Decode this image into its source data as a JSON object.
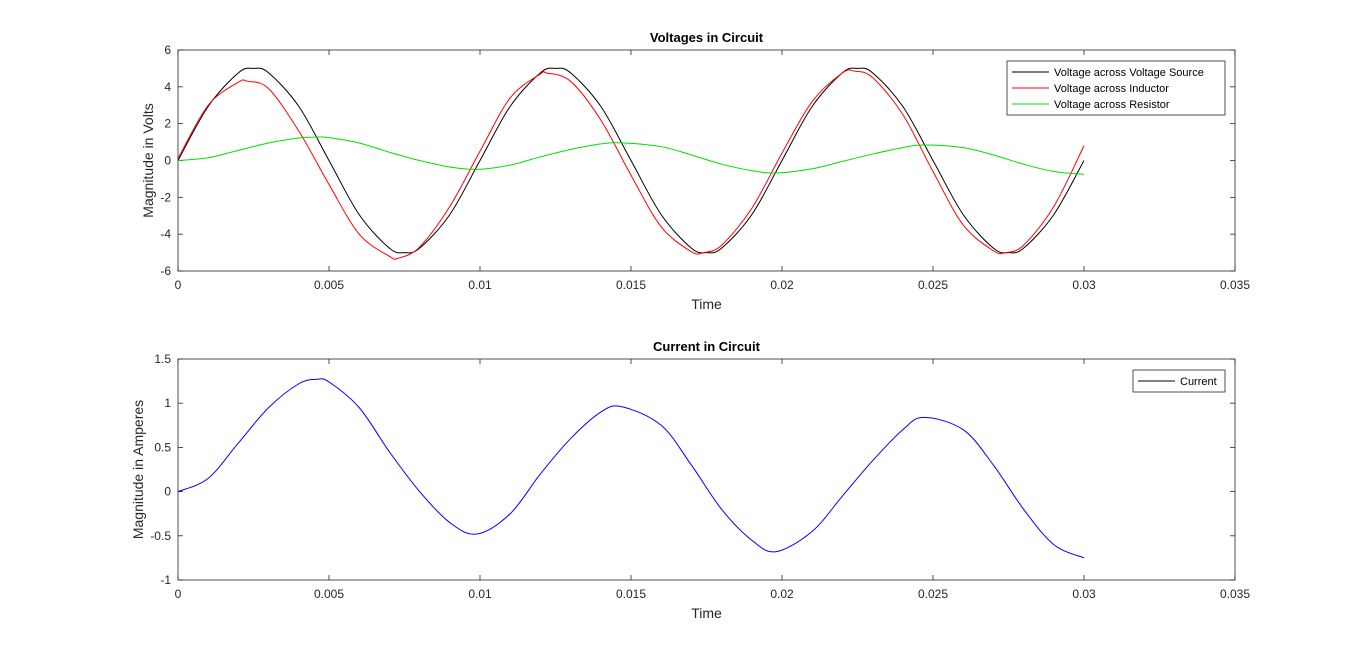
{
  "colors": {
    "source": "#000000",
    "inductor": "#ff0000",
    "resistor": "#00e000",
    "current": "#0000ff",
    "axis": "#262626",
    "legend_border": "#262626"
  },
  "chart_data": [
    {
      "type": "line",
      "title": "Voltages in Circuit",
      "xlabel": "Time",
      "ylabel": "Magnitude in Volts",
      "xlim": [
        0,
        0.035
      ],
      "ylim": [
        -6,
        6
      ],
      "xticks": [
        0,
        0.005,
        0.01,
        0.015,
        0.02,
        0.025,
        0.03,
        0.035
      ],
      "xtick_labels": [
        "0",
        "0.005",
        "0.01",
        "0.015",
        "0.02",
        "0.025",
        "0.03",
        "0.035"
      ],
      "yticks": [
        -6,
        -4,
        -2,
        0,
        2,
        4,
        6
      ],
      "ytick_labels": [
        "-6",
        "-4",
        "-2",
        "0",
        "2",
        "4",
        "6"
      ],
      "grid": false,
      "legend_position": "top-right",
      "series": [
        {
          "name": "Voltage across Voltage Source",
          "color_key": "source",
          "x": [
            0,
            0.001,
            0.002,
            0.0025,
            0.003,
            0.004,
            0.005,
            0.006,
            0.007,
            0.0075,
            0.008,
            0.009,
            0.01,
            0.011,
            0.012,
            0.0125,
            0.013,
            0.014,
            0.015,
            0.016,
            0.017,
            0.0175,
            0.018,
            0.019,
            0.02,
            0.021,
            0.022,
            0.0225,
            0.023,
            0.024,
            0.025,
            0.026,
            0.027,
            0.0275,
            0.028,
            0.029,
            0.03
          ],
          "values": [
            0,
            2.94,
            4.76,
            5.0,
            4.76,
            2.94,
            0,
            -2.94,
            -4.76,
            -5.0,
            -4.76,
            -2.94,
            0,
            2.94,
            4.76,
            5.0,
            4.76,
            2.94,
            0,
            -2.94,
            -4.76,
            -5.0,
            -4.76,
            -2.94,
            0,
            2.94,
            4.76,
            5.0,
            4.76,
            2.94,
            0,
            -2.94,
            -4.76,
            -5.0,
            -4.76,
            -2.94,
            0
          ]
        },
        {
          "name": "Voltage across Inductor",
          "color_key": "inductor",
          "x": [
            0,
            0.001,
            0.002,
            0.0023,
            0.003,
            0.004,
            0.005,
            0.006,
            0.007,
            0.0073,
            0.008,
            0.009,
            0.01,
            0.011,
            0.012,
            0.0122,
            0.013,
            0.014,
            0.015,
            0.016,
            0.017,
            0.0174,
            0.018,
            0.019,
            0.02,
            0.021,
            0.022,
            0.0224,
            0.023,
            0.024,
            0.025,
            0.026,
            0.027,
            0.0274,
            0.028,
            0.029,
            0.03
          ],
          "values": [
            0.1,
            3.0,
            4.25,
            4.3,
            3.9,
            1.6,
            -1.3,
            -4.0,
            -5.2,
            -5.3,
            -4.7,
            -2.5,
            0.5,
            3.4,
            4.7,
            4.75,
            4.3,
            2.2,
            -0.8,
            -3.6,
            -4.95,
            -5.0,
            -4.6,
            -2.6,
            0.4,
            3.2,
            4.75,
            4.85,
            4.5,
            2.5,
            -0.6,
            -3.5,
            -4.9,
            -5.0,
            -4.6,
            -2.5,
            0.8
          ]
        },
        {
          "name": "Voltage across Resistor",
          "color_key": "resistor",
          "x": [
            0,
            0.001,
            0.002,
            0.003,
            0.004,
            0.0046,
            0.005,
            0.006,
            0.007,
            0.008,
            0.009,
            0.0099,
            0.011,
            0.012,
            0.013,
            0.014,
            0.0147,
            0.016,
            0.017,
            0.018,
            0.019,
            0.0198,
            0.021,
            0.022,
            0.023,
            0.024,
            0.0247,
            0.026,
            0.027,
            0.028,
            0.029,
            0.03
          ],
          "values": [
            0,
            0.15,
            0.55,
            0.95,
            1.22,
            1.27,
            1.24,
            0.95,
            0.45,
            0.0,
            -0.35,
            -0.48,
            -0.25,
            0.2,
            0.6,
            0.9,
            0.96,
            0.75,
            0.3,
            -0.2,
            -0.55,
            -0.68,
            -0.45,
            -0.05,
            0.35,
            0.7,
            0.84,
            0.7,
            0.3,
            -0.2,
            -0.6,
            -0.75
          ]
        }
      ]
    },
    {
      "type": "line",
      "title": "Current in Circuit",
      "xlabel": "Time",
      "ylabel": "Magnitude in Amperes",
      "xlim": [
        0,
        0.035
      ],
      "ylim": [
        -1,
        1.5
      ],
      "xticks": [
        0,
        0.005,
        0.01,
        0.015,
        0.02,
        0.025,
        0.03,
        0.035
      ],
      "xtick_labels": [
        "0",
        "0.005",
        "0.01",
        "0.015",
        "0.02",
        "0.025",
        "0.03",
        "0.035"
      ],
      "yticks": [
        -1,
        -0.5,
        0,
        0.5,
        1,
        1.5
      ],
      "ytick_labels": [
        "-1",
        "-0.5",
        "0",
        "0.5",
        "1",
        "1.5"
      ],
      "grid": false,
      "legend_position": "top-right",
      "legend_line_color_key": "source",
      "series": [
        {
          "name": "Current",
          "color_key": "current",
          "x": [
            0,
            0.001,
            0.002,
            0.003,
            0.004,
            0.0046,
            0.005,
            0.006,
            0.007,
            0.008,
            0.009,
            0.0099,
            0.011,
            0.012,
            0.013,
            0.014,
            0.0147,
            0.016,
            0.017,
            0.018,
            0.019,
            0.0198,
            0.021,
            0.022,
            0.023,
            0.024,
            0.0247,
            0.026,
            0.027,
            0.028,
            0.029,
            0.03
          ],
          "values": [
            0,
            0.15,
            0.55,
            0.95,
            1.22,
            1.27,
            1.24,
            0.95,
            0.45,
            0.0,
            -0.35,
            -0.48,
            -0.25,
            0.2,
            0.6,
            0.9,
            0.96,
            0.75,
            0.3,
            -0.2,
            -0.55,
            -0.68,
            -0.45,
            -0.05,
            0.35,
            0.7,
            0.84,
            0.7,
            0.3,
            -0.2,
            -0.6,
            -0.75
          ]
        }
      ]
    }
  ]
}
